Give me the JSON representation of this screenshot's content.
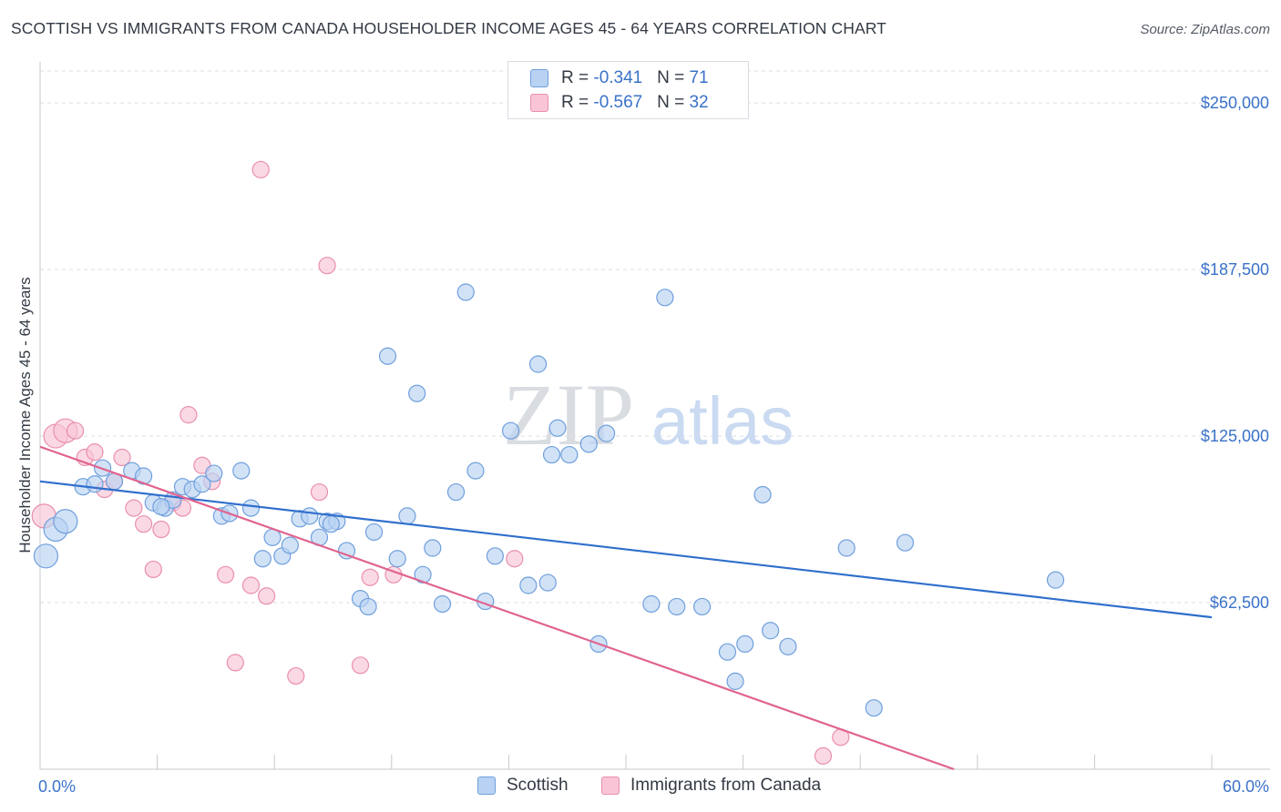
{
  "header": {
    "title": "SCOTTISH VS IMMIGRANTS FROM CANADA HOUSEHOLDER INCOME AGES 45 - 64 YEARS CORRELATION CHART",
    "source": "Source: ZipAtlas.com"
  },
  "watermark": {
    "zip": "ZIP",
    "atlas": "atlas"
  },
  "legend": {
    "rows": [
      {
        "r_label": "R = ",
        "r_value": "-0.341",
        "n_label": "N = ",
        "n_value": "71"
      },
      {
        "r_label": "R = ",
        "r_value": "-0.567",
        "n_label": "N = ",
        "n_value": "32"
      }
    ]
  },
  "bottom_legend": {
    "scottish": "Scottish",
    "canada": "Immigrants from Canada"
  },
  "colors": {
    "scottish_fill": "#b9d2f3",
    "scottish_stroke": "#6f9fdc",
    "scottish_line": "#2f6fcc",
    "canada_fill": "#f9c5d6",
    "canada_stroke": "#e98fae",
    "canada_line": "#e0648f",
    "axis_label": "#3a72c8",
    "grid": "#dcdfe4"
  },
  "chart_data": {
    "type": "scatter",
    "title": "SCOTTISH VS IMMIGRANTS FROM CANADA HOUSEHOLDER INCOME AGES 45 - 64 YEARS CORRELATION CHART",
    "xlabel": "",
    "ylabel": "Householder Income Ages 45 - 64 years",
    "xlim": [
      0,
      60
    ],
    "ylim": [
      0,
      262000
    ],
    "x_tick_labels": [
      "0.0%",
      "60.0%"
    ],
    "y_ticks": [
      62500,
      125000,
      187500,
      250000
    ],
    "y_tick_labels": [
      "$62,500",
      "$125,000",
      "$187,500",
      "$250,000"
    ],
    "grid": true,
    "legend_position": "top-center",
    "series": [
      {
        "name": "Scottish",
        "r": -0.341,
        "n": 71,
        "trend": {
          "x0": 0,
          "y0": 108000,
          "x1": 60,
          "y1": 57000
        },
        "points": [
          [
            0.3,
            80000
          ],
          [
            0.8,
            90000
          ],
          [
            1.3,
            93000
          ],
          [
            2.2,
            106000
          ],
          [
            2.8,
            107000
          ],
          [
            3.2,
            113000
          ],
          [
            3.8,
            108000
          ],
          [
            4.7,
            112000
          ],
          [
            5.3,
            110000
          ],
          [
            5.8,
            100000
          ],
          [
            6.4,
            98000
          ],
          [
            6.8,
            101000
          ],
          [
            7.3,
            106000
          ],
          [
            7.8,
            105000
          ],
          [
            8.3,
            107000
          ],
          [
            8.9,
            111000
          ],
          [
            9.3,
            95000
          ],
          [
            9.7,
            96000
          ],
          [
            10.3,
            112000
          ],
          [
            10.8,
            98000
          ],
          [
            11.4,
            79000
          ],
          [
            11.9,
            87000
          ],
          [
            12.4,
            80000
          ],
          [
            12.8,
            84000
          ],
          [
            13.3,
            94000
          ],
          [
            13.8,
            95000
          ],
          [
            14.3,
            87000
          ],
          [
            14.7,
            93000
          ],
          [
            15.2,
            93000
          ],
          [
            15.7,
            82000
          ],
          [
            16.4,
            64000
          ],
          [
            16.8,
            61000
          ],
          [
            17.1,
            89000
          ],
          [
            17.8,
            155000
          ],
          [
            18.3,
            79000
          ],
          [
            18.8,
            95000
          ],
          [
            19.3,
            141000
          ],
          [
            19.6,
            73000
          ],
          [
            20.1,
            83000
          ],
          [
            20.6,
            62000
          ],
          [
            21.3,
            104000
          ],
          [
            21.8,
            179000
          ],
          [
            22.3,
            112000
          ],
          [
            22.8,
            63000
          ],
          [
            23.3,
            80000
          ],
          [
            24.1,
            127000
          ],
          [
            25.0,
            69000
          ],
          [
            25.5,
            152000
          ],
          [
            26.0,
            70000
          ],
          [
            26.5,
            128000
          ],
          [
            27.1,
            118000
          ],
          [
            28.1,
            122000
          ],
          [
            28.6,
            47000
          ],
          [
            29.0,
            126000
          ],
          [
            31.3,
            62000
          ],
          [
            32.0,
            177000
          ],
          [
            32.6,
            61000
          ],
          [
            33.9,
            61000
          ],
          [
            35.2,
            44000
          ],
          [
            35.6,
            33000
          ],
          [
            36.1,
            47000
          ],
          [
            37.0,
            103000
          ],
          [
            37.4,
            52000
          ],
          [
            38.3,
            46000
          ],
          [
            41.3,
            83000
          ],
          [
            42.7,
            23000
          ],
          [
            44.3,
            85000
          ],
          [
            52.0,
            71000
          ],
          [
            26.2,
            118000
          ],
          [
            14.9,
            92000
          ],
          [
            6.2,
            98500
          ]
        ]
      },
      {
        "name": "Immigrants from Canada",
        "r": -0.567,
        "n": 32,
        "trend": {
          "x0": 0,
          "y0": 121000,
          "x1": 46.8,
          "y1": 0
        },
        "points": [
          [
            0.2,
            95000
          ],
          [
            0.8,
            125000
          ],
          [
            1.3,
            127000
          ],
          [
            1.8,
            127000
          ],
          [
            2.3,
            117000
          ],
          [
            2.8,
            119000
          ],
          [
            3.3,
            105000
          ],
          [
            3.8,
            108000
          ],
          [
            4.2,
            117000
          ],
          [
            4.8,
            98000
          ],
          [
            5.3,
            92000
          ],
          [
            5.8,
            75000
          ],
          [
            6.2,
            90000
          ],
          [
            6.8,
            100000
          ],
          [
            7.3,
            98000
          ],
          [
            7.6,
            133000
          ],
          [
            8.3,
            114000
          ],
          [
            8.8,
            108000
          ],
          [
            9.5,
            73000
          ],
          [
            10.0,
            40000
          ],
          [
            10.8,
            69000
          ],
          [
            11.6,
            65000
          ],
          [
            11.3,
            225000
          ],
          [
            13.1,
            35000
          ],
          [
            14.3,
            104000
          ],
          [
            14.7,
            189000
          ],
          [
            16.4,
            39000
          ],
          [
            16.9,
            72000
          ],
          [
            18.1,
            73000
          ],
          [
            24.3,
            79000
          ],
          [
            41.0,
            12000
          ],
          [
            40.1,
            5000
          ]
        ]
      }
    ]
  }
}
